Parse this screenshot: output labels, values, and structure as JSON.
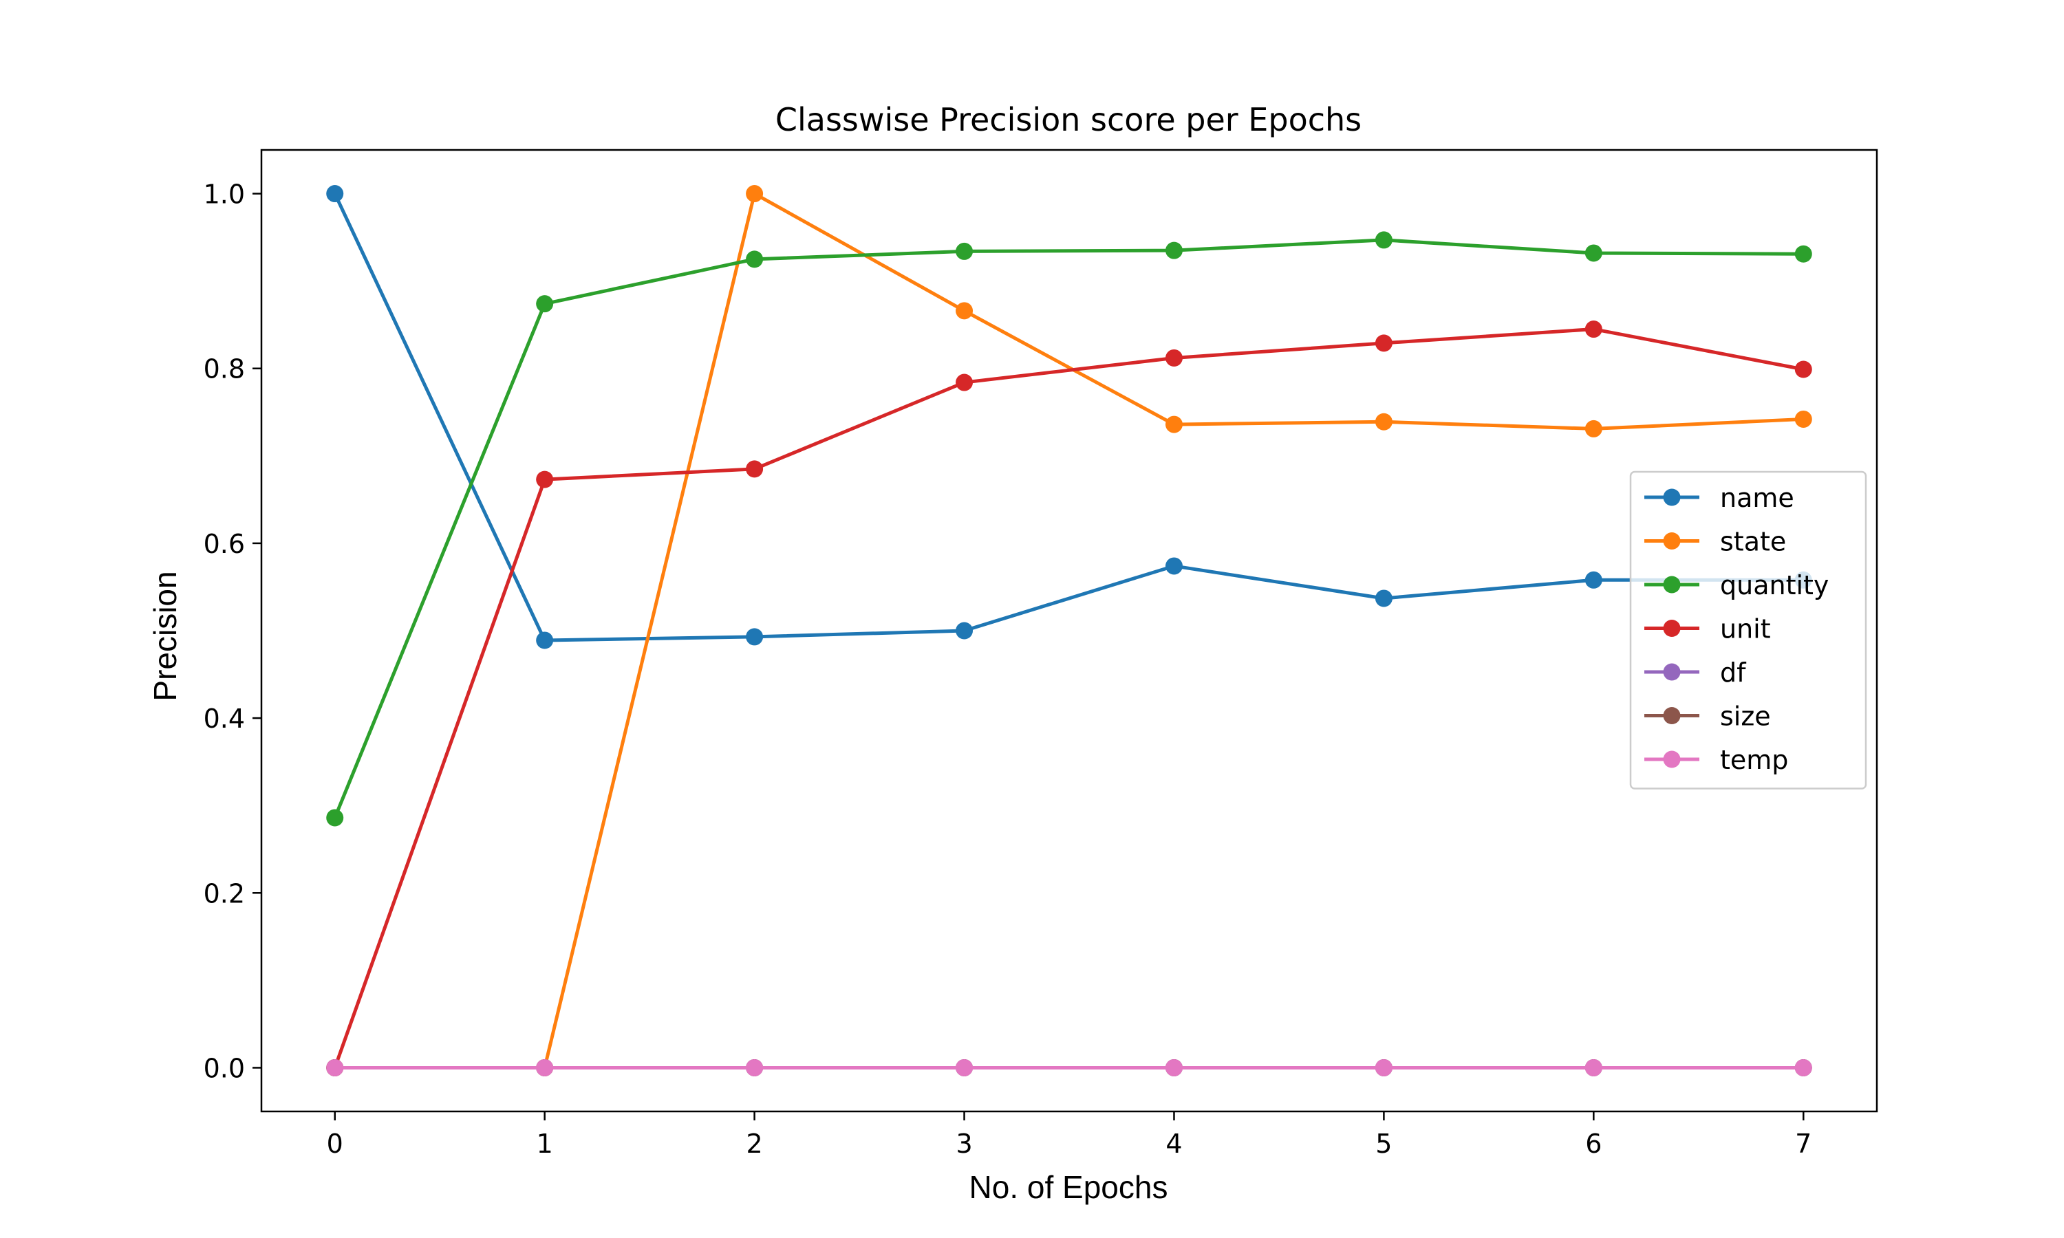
{
  "chart_data": {
    "type": "line",
    "title": "Classwise Precision score per Epochs",
    "xlabel": "No. of Epochs",
    "ylabel": "Precision",
    "x": [
      0,
      1,
      2,
      3,
      4,
      5,
      6,
      7
    ],
    "xlim": [
      -0.35,
      7.35
    ],
    "ylim": [
      -0.05,
      1.05
    ],
    "xticks": [
      "0",
      "1",
      "2",
      "3",
      "4",
      "5",
      "6",
      "7"
    ],
    "yticks": [
      "0.0",
      "0.2",
      "0.4",
      "0.6",
      "0.8",
      "1.0"
    ],
    "grid": false,
    "legend_position": "center-right",
    "series": [
      {
        "name": "name",
        "color": "#1f77b4",
        "values": [
          1.0,
          0.489,
          0.493,
          0.5,
          0.574,
          0.537,
          0.558,
          0.558
        ]
      },
      {
        "name": "state",
        "color": "#ff7f0e",
        "values": [
          0.0,
          0.0,
          1.0,
          0.866,
          0.736,
          0.739,
          0.731,
          0.742
        ]
      },
      {
        "name": "quantity",
        "color": "#2ca02c",
        "values": [
          0.286,
          0.874,
          0.925,
          0.934,
          0.935,
          0.947,
          0.932,
          0.931
        ]
      },
      {
        "name": "unit",
        "color": "#d62728",
        "values": [
          0.0,
          0.673,
          0.685,
          0.784,
          0.812,
          0.829,
          0.845,
          0.799
        ]
      },
      {
        "name": "df",
        "color": "#9467bd",
        "values": [
          0,
          0,
          0,
          0,
          0,
          0,
          0,
          0
        ]
      },
      {
        "name": "size",
        "color": "#8c564b",
        "values": [
          0,
          0,
          0,
          0,
          0,
          0,
          0,
          0
        ]
      },
      {
        "name": "temp",
        "color": "#e377c2",
        "values": [
          0,
          0,
          0,
          0,
          0,
          0,
          0,
          0
        ]
      }
    ]
  }
}
